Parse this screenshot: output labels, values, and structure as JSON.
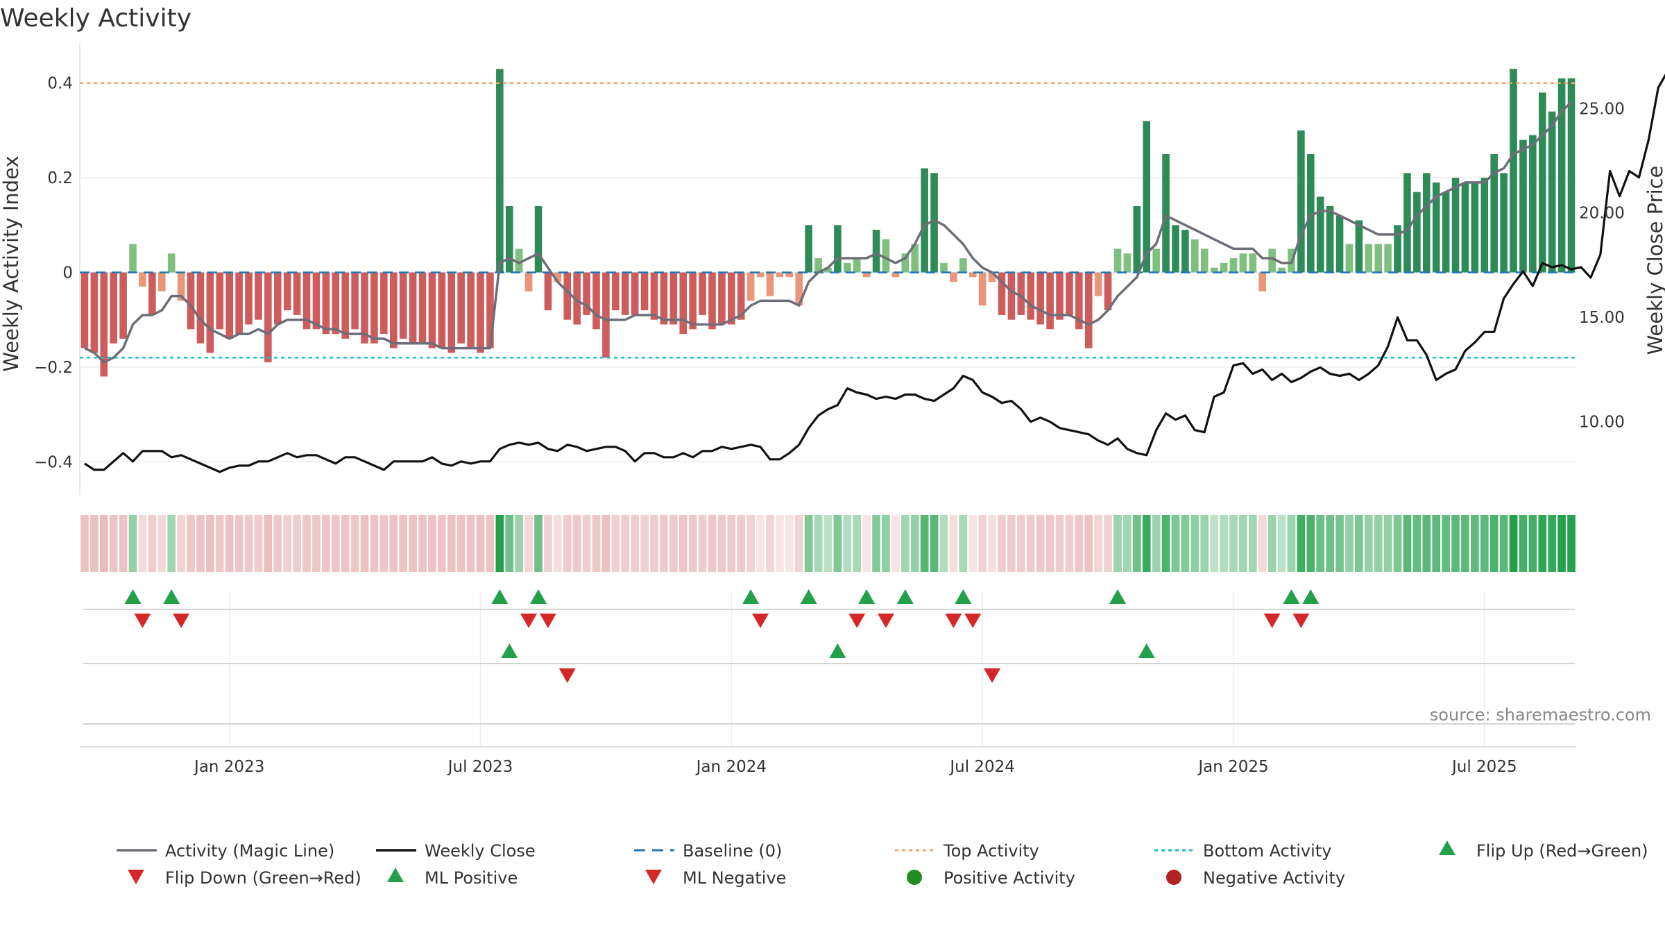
{
  "chart_data": {
    "type": "bar",
    "title": "Weekly Activity",
    "ylabel": "Weekly Activity Index",
    "y2label": "Weekly Close Price",
    "ylim": [
      -0.47,
      0.47
    ],
    "y2lim": [
      6.5,
      27.8
    ],
    "yticks": [
      {
        "value": 0.4,
        "label": "0.4"
      },
      {
        "value": 0.2,
        "label": "0.2"
      },
      {
        "value": 0,
        "label": "0"
      },
      {
        "value": -0.2,
        "label": "−0.2"
      },
      {
        "value": -0.4,
        "label": "−0.4"
      }
    ],
    "y2ticks": [
      {
        "value": 25,
        "label": "25.00"
      },
      {
        "value": 20,
        "label": "20.00"
      },
      {
        "value": 15,
        "label": "15.00"
      },
      {
        "value": 10,
        "label": "10.00"
      }
    ],
    "xticks": [
      {
        "week": 15,
        "label": "Jan 2023"
      },
      {
        "week": 41,
        "label": "Jul 2023"
      },
      {
        "week": 67,
        "label": "Jan 2024"
      },
      {
        "week": 93,
        "label": "Jul 2024"
      },
      {
        "week": 119,
        "label": "Jan 2025"
      },
      {
        "week": 145,
        "label": "Jul 2025"
      }
    ],
    "top_activity": 0.4,
    "bottom_activity": -0.18,
    "activity": [
      -0.16,
      -0.17,
      -0.22,
      -0.15,
      -0.14,
      0.06,
      -0.03,
      -0.09,
      -0.04,
      0.04,
      -0.06,
      -0.12,
      -0.15,
      -0.17,
      -0.12,
      -0.14,
      -0.13,
      -0.11,
      -0.1,
      -0.19,
      -0.11,
      -0.08,
      -0.09,
      -0.12,
      -0.12,
      -0.13,
      -0.13,
      -0.14,
      -0.12,
      -0.15,
      -0.15,
      -0.13,
      -0.16,
      -0.14,
      -0.15,
      -0.15,
      -0.16,
      -0.16,
      -0.17,
      -0.15,
      -0.16,
      -0.17,
      -0.16,
      0.43,
      0.14,
      0.05,
      -0.04,
      0.14,
      -0.08,
      -0.02,
      -0.1,
      -0.11,
      -0.09,
      -0.12,
      -0.18,
      -0.08,
      -0.09,
      -0.09,
      -0.08,
      -0.1,
      -0.11,
      -0.11,
      -0.13,
      -0.12,
      -0.09,
      -0.12,
      -0.11,
      -0.11,
      -0.1,
      -0.06,
      -0.01,
      -0.05,
      -0.01,
      -0.01,
      -0.07,
      0.1,
      0.03,
      0.01,
      0.1,
      0.02,
      0.03,
      -0.01,
      0.09,
      0.07,
      -0.01,
      0.04,
      0.06,
      0.22,
      0.21,
      0.02,
      -0.02,
      0.03,
      -0.01,
      -0.07,
      -0.02,
      -0.09,
      -0.1,
      -0.09,
      -0.1,
      -0.11,
      -0.12,
      -0.1,
      -0.09,
      -0.12,
      -0.16,
      -0.05,
      -0.08,
      0.05,
      0.04,
      0.14,
      0.32,
      0.05,
      0.25,
      0.1,
      0.09,
      0.07,
      0.05,
      0.01,
      0.02,
      0.03,
      0.04,
      0.04,
      -0.04,
      0.05,
      0.01,
      0.05,
      0.3,
      0.25,
      0.16,
      0.14,
      0.12,
      0.06,
      0.11,
      0.06,
      0.06,
      0.06,
      0.1,
      0.21,
      0.17,
      0.21,
      0.19,
      0.17,
      0.2,
      0.19,
      0.19,
      0.2,
      0.25,
      0.21,
      0.43,
      0.28,
      0.29,
      0.38,
      0.34,
      0.41,
      0.41
    ],
    "magic_line": [
      -0.16,
      -0.17,
      -0.19,
      -0.18,
      -0.16,
      -0.11,
      -0.09,
      -0.09,
      -0.08,
      -0.05,
      -0.05,
      -0.07,
      -0.1,
      -0.12,
      -0.13,
      -0.14,
      -0.13,
      -0.13,
      -0.12,
      -0.13,
      -0.11,
      -0.1,
      -0.1,
      -0.1,
      -0.11,
      -0.12,
      -0.12,
      -0.13,
      -0.13,
      -0.13,
      -0.14,
      -0.14,
      -0.15,
      -0.15,
      -0.15,
      -0.15,
      -0.15,
      -0.16,
      -0.16,
      -0.16,
      -0.16,
      -0.16,
      -0.16,
      0.02,
      0.03,
      0.02,
      0.03,
      0.04,
      0.01,
      -0.02,
      -0.04,
      -0.06,
      -0.07,
      -0.09,
      -0.1,
      -0.1,
      -0.1,
      -0.09,
      -0.09,
      -0.09,
      -0.1,
      -0.1,
      -0.1,
      -0.11,
      -0.11,
      -0.11,
      -0.11,
      -0.1,
      -0.09,
      -0.07,
      -0.06,
      -0.06,
      -0.06,
      -0.06,
      -0.07,
      -0.02,
      0.0,
      0.01,
      0.03,
      0.03,
      0.03,
      0.03,
      0.04,
      0.03,
      0.02,
      0.03,
      0.06,
      0.1,
      0.11,
      0.1,
      0.08,
      0.06,
      0.03,
      0.01,
      0.0,
      -0.02,
      -0.04,
      -0.05,
      -0.07,
      -0.08,
      -0.09,
      -0.09,
      -0.09,
      -0.1,
      -0.11,
      -0.1,
      -0.08,
      -0.05,
      -0.03,
      -0.01,
      0.04,
      0.06,
      0.12,
      0.11,
      0.1,
      0.09,
      0.08,
      0.07,
      0.06,
      0.05,
      0.05,
      0.05,
      0.03,
      0.03,
      0.02,
      0.02,
      0.08,
      0.12,
      0.13,
      0.13,
      0.12,
      0.11,
      0.1,
      0.09,
      0.08,
      0.08,
      0.08,
      0.09,
      0.12,
      0.14,
      0.16,
      0.17,
      0.18,
      0.19,
      0.19,
      0.19,
      0.21,
      0.22,
      0.25,
      0.26,
      0.27,
      0.29,
      0.31,
      0.34,
      0.36
    ],
    "close": [
      8.0,
      7.7,
      7.7,
      8.1,
      8.5,
      8.1,
      8.6,
      8.6,
      8.6,
      8.3,
      8.4,
      8.2,
      8.0,
      7.8,
      7.6,
      7.8,
      7.9,
      7.9,
      8.1,
      8.1,
      8.3,
      8.5,
      8.3,
      8.4,
      8.4,
      8.2,
      8.0,
      8.3,
      8.3,
      8.1,
      7.9,
      7.7,
      8.1,
      8.1,
      8.1,
      8.1,
      8.3,
      8.0,
      7.9,
      8.1,
      8.0,
      8.1,
      8.1,
      8.7,
      8.9,
      9.0,
      8.9,
      9.0,
      8.7,
      8.6,
      8.9,
      8.8,
      8.6,
      8.7,
      8.8,
      8.8,
      8.6,
      8.1,
      8.5,
      8.5,
      8.3,
      8.3,
      8.5,
      8.3,
      8.6,
      8.6,
      8.8,
      8.7,
      8.8,
      8.9,
      8.8,
      8.2,
      8.2,
      8.5,
      8.9,
      9.7,
      10.3,
      10.6,
      10.8,
      11.6,
      11.4,
      11.3,
      11.1,
      11.2,
      11.1,
      11.3,
      11.3,
      11.1,
      11.0,
      11.3,
      11.6,
      12.2,
      12.0,
      11.4,
      11.2,
      10.9,
      11.0,
      10.6,
      10.0,
      10.2,
      10.0,
      9.7,
      9.6,
      9.5,
      9.4,
      9.1,
      8.9,
      9.2,
      8.7,
      8.5,
      8.4,
      9.6,
      10.4,
      10.1,
      10.3,
      9.6,
      9.5,
      11.2,
      11.4,
      12.7,
      12.8,
      12.3,
      12.5,
      12.0,
      12.3,
      11.9,
      12.1,
      12.4,
      12.6,
      12.3,
      12.2,
      12.3,
      12.0,
      12.3,
      12.7,
      13.6,
      15.0,
      13.9,
      13.9,
      13.2,
      12.0,
      12.3,
      12.5,
      13.4,
      13.8,
      14.3,
      14.3,
      15.9,
      16.6,
      17.2,
      16.5,
      17.6,
      17.4,
      17.5,
      17.3,
      17.4,
      16.9,
      18.0,
      22.0,
      20.8,
      22.0,
      21.7,
      23.5,
      26.0,
      26.8
    ],
    "flip_up": [
      5,
      9,
      43,
      47,
      69,
      75,
      81,
      85,
      91,
      107,
      125,
      127
    ],
    "flip_down": [
      6,
      10,
      46,
      48,
      70,
      80,
      83,
      90,
      92,
      123,
      126
    ],
    "ml_positive": [
      44,
      78,
      110
    ],
    "ml_negative": [
      50,
      94
    ],
    "legend": [
      {
        "key": "magic",
        "label": "Activity (Magic Line)"
      },
      {
        "key": "close",
        "label": "Weekly Close"
      },
      {
        "key": "baseline",
        "label": "Baseline (0)"
      },
      {
        "key": "top",
        "label": "Top Activity"
      },
      {
        "key": "bottom",
        "label": "Bottom Activity"
      },
      {
        "key": "flipup",
        "label": "Flip Up (Red→Green)"
      },
      {
        "key": "flipdown",
        "label": "Flip Down (Green→Red)"
      },
      {
        "key": "mlpos",
        "label": "ML Positive"
      },
      {
        "key": "mlneg",
        "label": "ML Negative"
      },
      {
        "key": "posact",
        "label": "Positive Activity"
      },
      {
        "key": "negact",
        "label": "Negative Activity"
      }
    ],
    "source": "source: sharemaestro.com",
    "colors": {
      "pos_strong": "#2e8b57",
      "pos_light": "#7fbf7f",
      "neg_strong": "#cd5c5c",
      "neg_light": "#e9967a",
      "magic": "#6e6e78",
      "close": "#111111",
      "baseline": "#1f77b4",
      "top": "#f4a460",
      "bottom": "#17becf",
      "up": "#22a04a",
      "down": "#d62728",
      "posdot": "#228b22",
      "negdot": "#b22222"
    }
  }
}
